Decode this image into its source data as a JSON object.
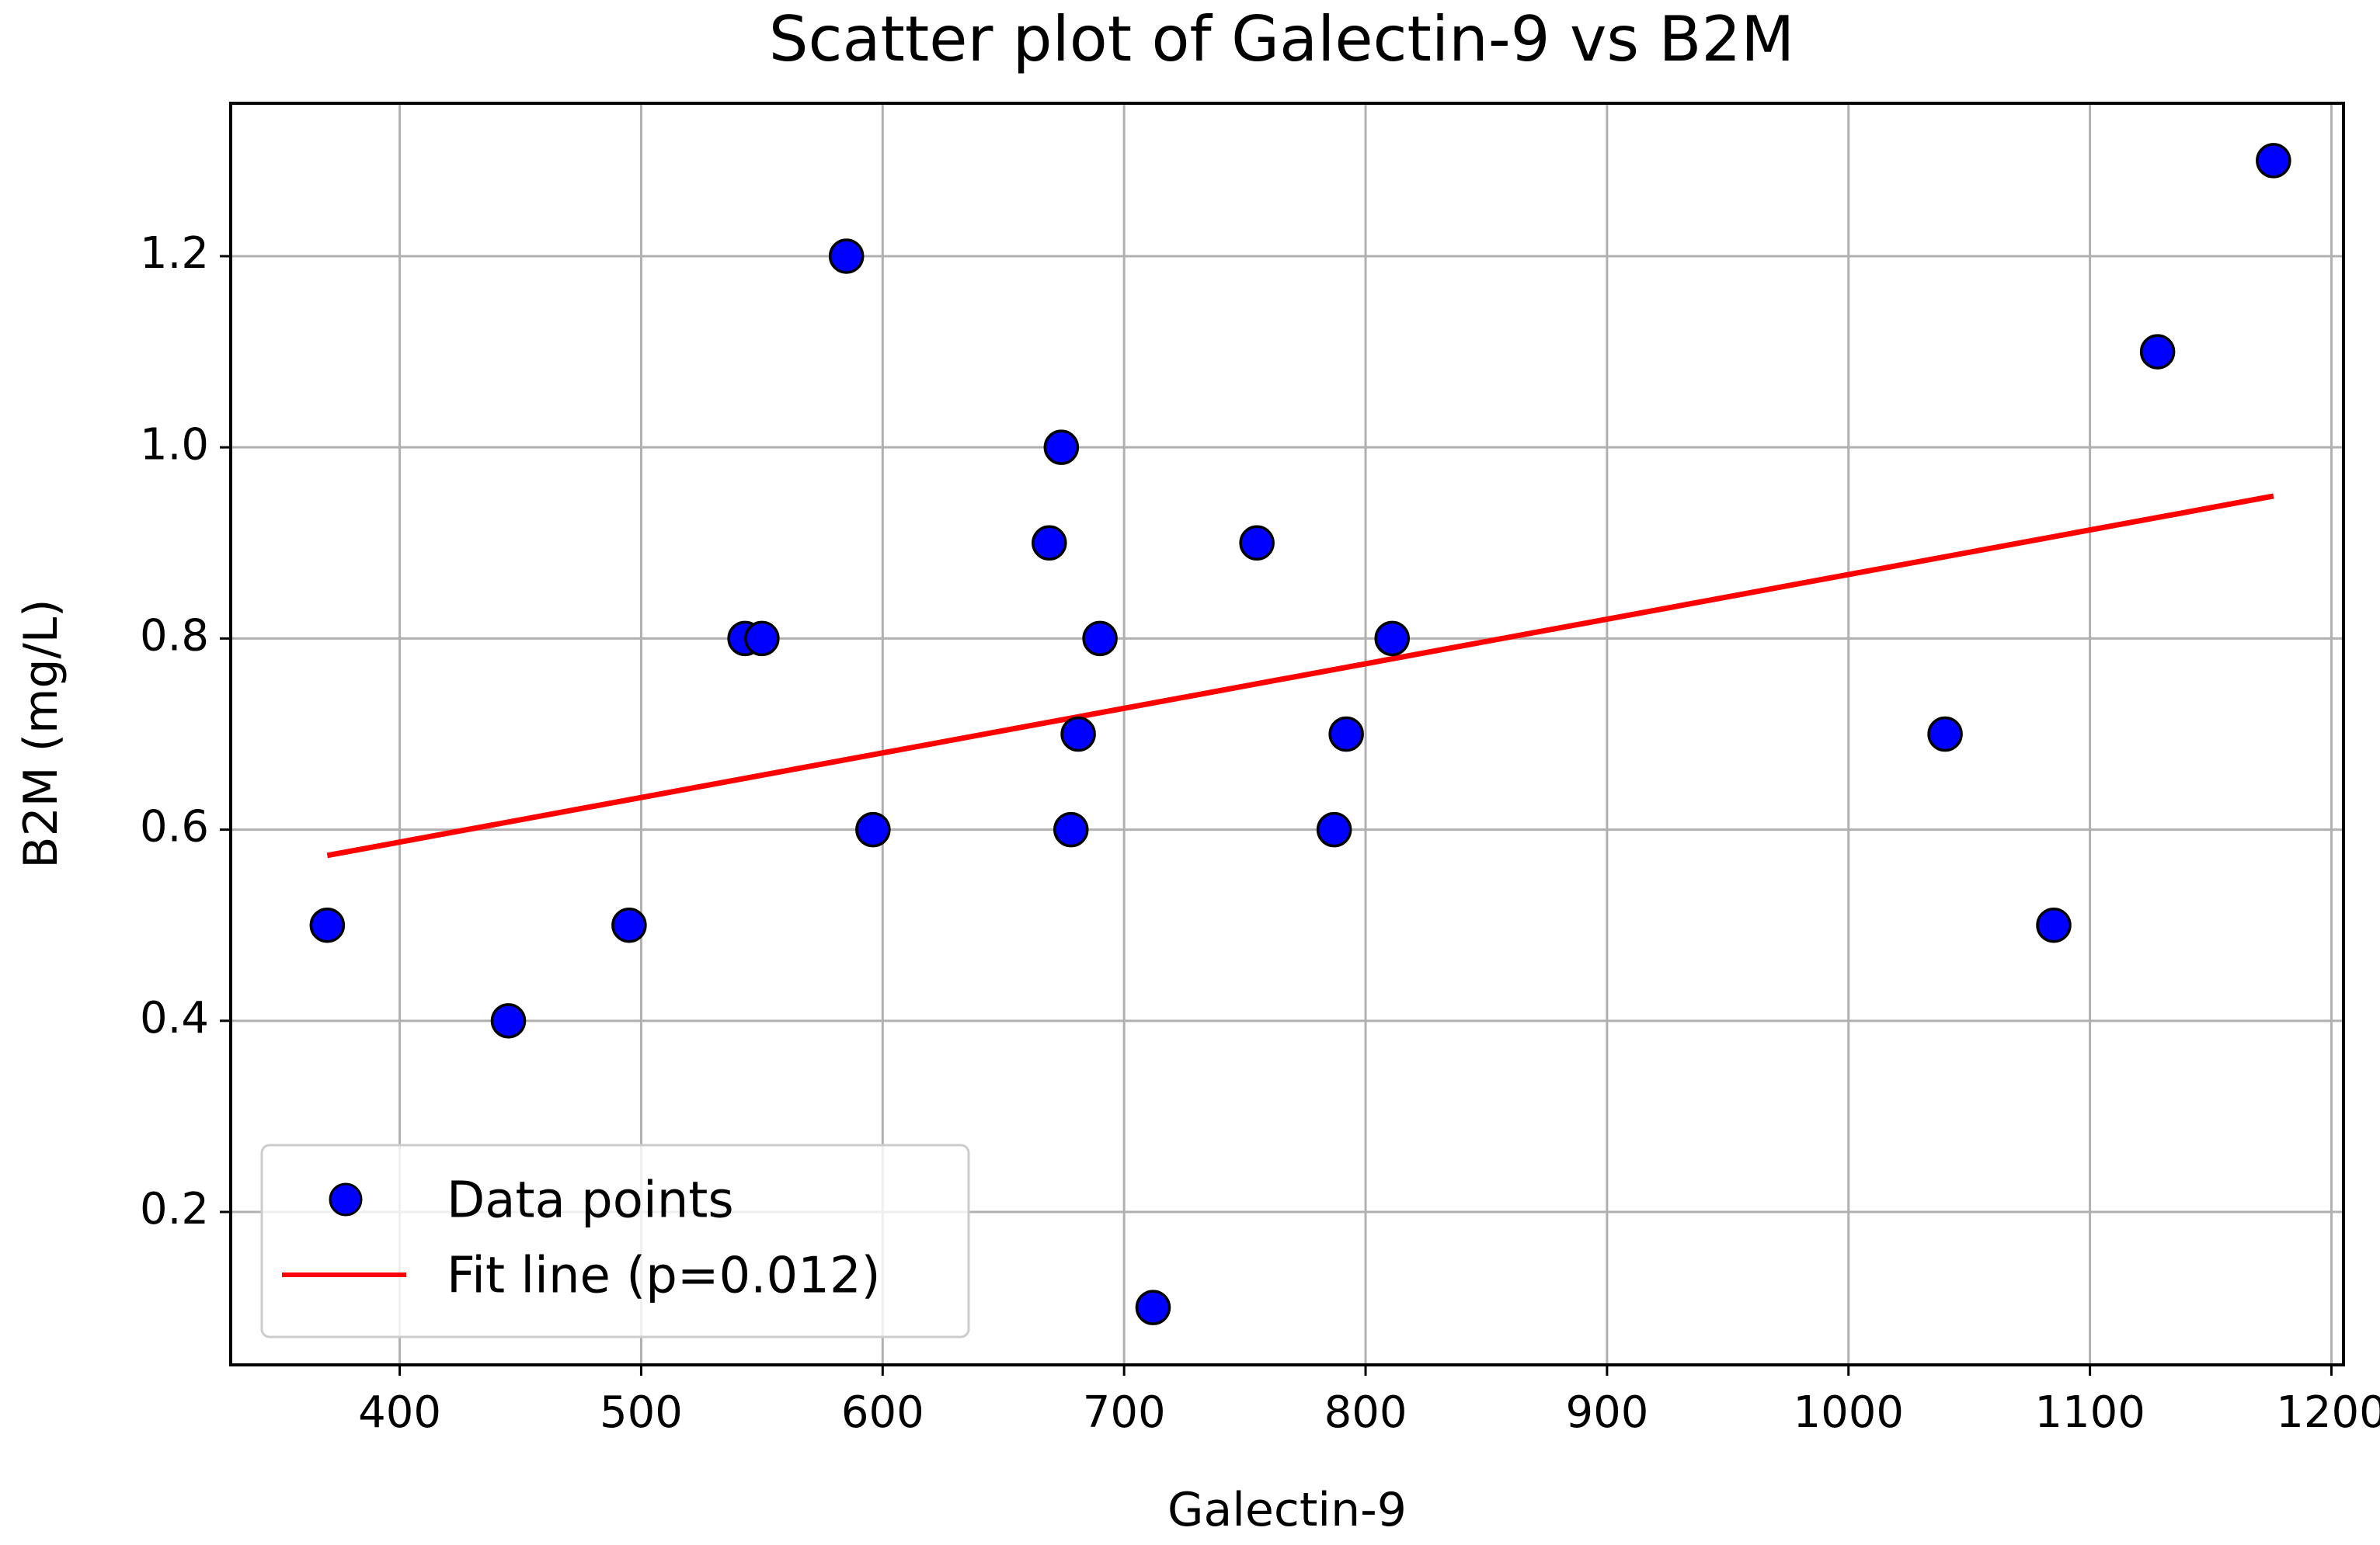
{
  "chart_data": {
    "type": "scatter",
    "title": "Scatter plot of Galectin-9 vs B2M",
    "xlabel": "Galectin-9",
    "ylabel": "B2M (mg/L)",
    "xlim": [
      330,
      1205
    ],
    "ylim": [
      0.04,
      1.36
    ],
    "xticks": [
      400,
      500,
      600,
      700,
      800,
      900,
      1000,
      1100,
      1200
    ],
    "yticks": [
      0.2,
      0.4,
      0.6,
      0.8,
      1.0,
      1.2
    ],
    "grid": true,
    "legend_position": "lower-left",
    "series": [
      {
        "name": "Data points",
        "kind": "scatter",
        "color": "#0000ff",
        "edge_color": "#000000",
        "x": [
          370,
          445,
          495,
          543,
          550,
          585,
          596,
          669,
          674,
          678,
          681,
          690,
          712,
          755,
          787,
          792,
          811,
          1040,
          1085,
          1128,
          1176
        ],
        "y": [
          0.5,
          0.4,
          0.5,
          0.8,
          0.8,
          1.2,
          0.6,
          0.9,
          1.0,
          0.6,
          0.7,
          0.8,
          0.1,
          0.9,
          0.6,
          0.7,
          0.8,
          0.7,
          0.5,
          1.1,
          1.3
        ]
      },
      {
        "name": "Fit line (p=0.012)",
        "kind": "line",
        "color": "#ff0000",
        "x": [
          370,
          1176
        ],
        "y": [
          0.573,
          0.949
        ]
      }
    ]
  }
}
